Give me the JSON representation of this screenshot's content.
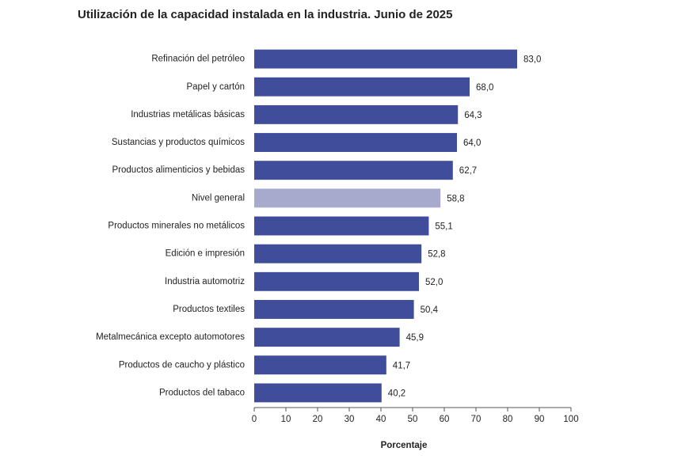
{
  "chart_data": {
    "type": "bar",
    "orientation": "horizontal",
    "title": "Utilización de la capacidad instalada en la industria. Junio de 2025",
    "xlabel": "Porcentaje",
    "categories": [
      "Refinación del petróleo",
      "Papel y cartón",
      "Industrias metálicas básicas",
      "Sustancias y productos químicos",
      "Productos alimenticios y bebidas",
      "Nivel general",
      "Productos minerales no metálicos",
      "Edición e impresión",
      "Industria automotriz",
      "Productos textiles",
      "Metalmecánica excepto automotores",
      "Productos de caucho y plástico",
      "Productos del tabaco"
    ],
    "values": [
      83.0,
      68.0,
      64.3,
      64.0,
      62.7,
      58.8,
      55.1,
      52.8,
      52.0,
      50.4,
      45.9,
      41.7,
      40.2
    ],
    "value_labels": [
      "83,0",
      "68,0",
      "64,3",
      "64,0",
      "62,7",
      "58,8",
      "55,1",
      "52,8",
      "52,0",
      "50,4",
      "45,9",
      "41,7",
      "40,2"
    ],
    "colors": [
      "#3f4d9b",
      "#3f4d9b",
      "#3f4d9b",
      "#3f4d9b",
      "#3f4d9b",
      "#a8aacd",
      "#3f4d9b",
      "#3f4d9b",
      "#3f4d9b",
      "#3f4d9b",
      "#3f4d9b",
      "#3f4d9b",
      "#3f4d9b"
    ],
    "xlim": [
      0,
      100
    ],
    "xticks": [
      0,
      10,
      20,
      30,
      40,
      50,
      60,
      70,
      80,
      90,
      100
    ],
    "grid": false
  }
}
